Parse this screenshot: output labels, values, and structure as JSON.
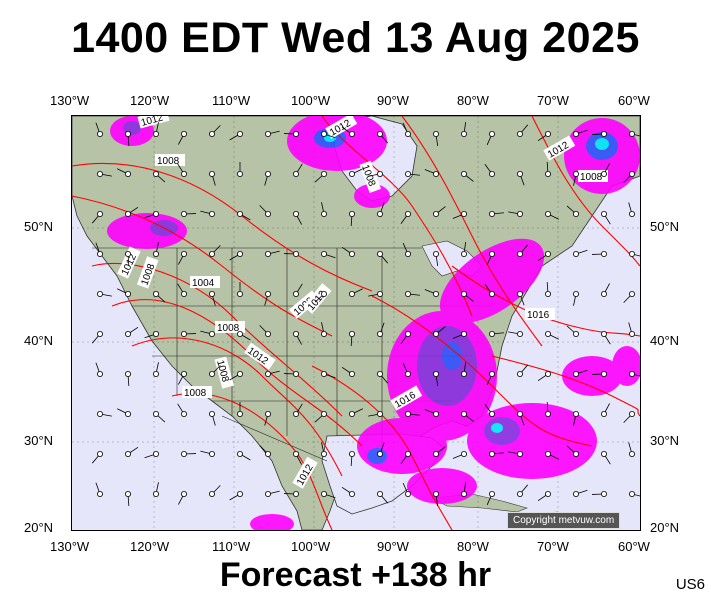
{
  "title": "1400 EDT Wed 13 Aug 2025",
  "footer": "Forecast +138 hr",
  "region_code": "US6",
  "copyright": "Copyright metvuw.com",
  "axes": {
    "lon_labels": [
      "130°W",
      "120°W",
      "110°W",
      "100°W",
      "90°W",
      "80°W",
      "70°W",
      "60°W"
    ],
    "lat_labels": [
      "50°N",
      "40°N",
      "30°N",
      "20°N"
    ]
  },
  "isobar_labels": [
    "1012",
    "1008",
    "1012",
    "1008",
    "1004",
    "1008",
    "1012",
    "1008",
    "1012",
    "1008",
    "1008",
    "1012",
    "1008",
    "1016",
    "1016",
    "1012",
    "1012",
    "1008"
  ],
  "colors": {
    "ocean": "#e6e6fa",
    "land": "#b6c3a6",
    "isobar": "#ff0000",
    "rain_light": "#ff00ff",
    "rain_mid": "#8a2be2",
    "rain_heavy": "#2f4fff",
    "rain_core": "#00e5ff"
  }
}
